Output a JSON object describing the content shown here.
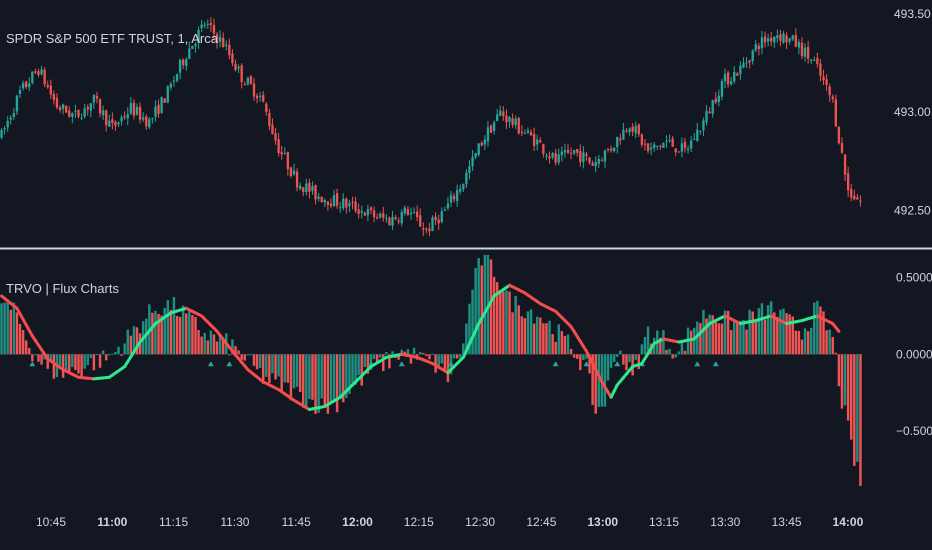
{
  "header": {
    "symbol_label": "SPDR S&P 500 ETF TRUST, 1, Arca",
    "indicator_label": "TRVO | Flux Charts"
  },
  "colors": {
    "background": "#131722",
    "up": "#26a69a",
    "down": "#ef5350",
    "histogram_up": "#1e8f80",
    "histogram_down": "#f05454",
    "signal_up": "#2ee88f",
    "signal_down": "#f54d4d",
    "divider": "#d1d4dc",
    "text": "#d1d4dc"
  },
  "chart_data": [
    {
      "type": "candlestick",
      "title": "SPDR S&P 500 ETF TRUST, 1, Arca",
      "ylim": [
        492.32,
        493.55
      ],
      "yticks": [
        {
          "value": 493.5,
          "label": "493.50"
        },
        {
          "value": 493.0,
          "label": "493.00"
        },
        {
          "value": 492.5,
          "label": "492.50"
        }
      ],
      "close_path": [
        [
          0,
          492.88
        ],
        [
          6,
          493.1
        ],
        [
          12,
          493.22
        ],
        [
          18,
          493.03
        ],
        [
          24,
          492.98
        ],
        [
          30,
          493.06
        ],
        [
          36,
          492.92
        ],
        [
          42,
          493.02
        ],
        [
          48,
          492.95
        ],
        [
          54,
          493.1
        ],
        [
          60,
          493.3
        ],
        [
          66,
          493.45
        ],
        [
          72,
          493.35
        ],
        [
          78,
          493.18
        ],
        [
          84,
          493.08
        ],
        [
          90,
          492.82
        ],
        [
          96,
          492.65
        ],
        [
          102,
          492.58
        ],
        [
          108,
          492.55
        ],
        [
          114,
          492.52
        ],
        [
          120,
          492.48
        ],
        [
          126,
          492.45
        ],
        [
          132,
          492.5
        ],
        [
          138,
          492.4
        ],
        [
          144,
          492.5
        ],
        [
          150,
          492.65
        ],
        [
          156,
          492.85
        ],
        [
          162,
          493.0
        ],
        [
          168,
          492.92
        ],
        [
          174,
          492.85
        ],
        [
          180,
          492.75
        ],
        [
          186,
          492.8
        ],
        [
          192,
          492.74
        ],
        [
          198,
          492.82
        ],
        [
          204,
          492.95
        ],
        [
          210,
          492.8
        ],
        [
          216,
          492.85
        ],
        [
          222,
          492.8
        ],
        [
          228,
          492.95
        ],
        [
          234,
          493.15
        ],
        [
          240,
          493.22
        ],
        [
          246,
          493.35
        ],
        [
          252,
          493.4
        ],
        [
          258,
          493.35
        ],
        [
          264,
          493.25
        ],
        [
          270,
          493.05
        ],
        [
          275,
          492.6
        ],
        [
          279,
          492.55
        ]
      ],
      "xticks": [
        {
          "pos": 16,
          "label": "10:45",
          "bold": false
        },
        {
          "pos": 36,
          "label": "11:00",
          "bold": true
        },
        {
          "pos": 56,
          "label": "11:15",
          "bold": false
        },
        {
          "pos": 76,
          "label": "11:30",
          "bold": false
        },
        {
          "pos": 96,
          "label": "11:45",
          "bold": false
        },
        {
          "pos": 116,
          "label": "12:00",
          "bold": true
        },
        {
          "pos": 136,
          "label": "12:15",
          "bold": false
        },
        {
          "pos": 156,
          "label": "12:30",
          "bold": false
        },
        {
          "pos": 176,
          "label": "12:45",
          "bold": false
        },
        {
          "pos": 196,
          "label": "13:00",
          "bold": true
        },
        {
          "pos": 216,
          "label": "13:15",
          "bold": false
        },
        {
          "pos": 236,
          "label": "13:30",
          "bold": false
        },
        {
          "pos": 256,
          "label": "13:45",
          "bold": false
        },
        {
          "pos": 276,
          "label": "14:00",
          "bold": true
        }
      ]
    },
    {
      "type": "bar+line",
      "title": "TRVO | Flux Charts",
      "ylim": [
        -0.95,
        0.68
      ],
      "yticks": [
        {
          "value": 0.5,
          "label": "0.5000"
        },
        {
          "value": 0.0,
          "label": "0.0000"
        },
        {
          "value": -0.5,
          "label": "−0.5000"
        }
      ],
      "histogram_path": [
        [
          0,
          0.35
        ],
        [
          5,
          0.25
        ],
        [
          10,
          0.02
        ],
        [
          15,
          -0.1
        ],
        [
          20,
          -0.12
        ],
        [
          25,
          -0.1
        ],
        [
          30,
          -0.05
        ],
        [
          35,
          -0.02
        ],
        [
          40,
          0.08
        ],
        [
          45,
          0.2
        ],
        [
          50,
          0.3
        ],
        [
          55,
          0.32
        ],
        [
          60,
          0.25
        ],
        [
          65,
          0.15
        ],
        [
          70,
          0.1
        ],
        [
          75,
          0.05
        ],
        [
          80,
          -0.05
        ],
        [
          85,
          -0.15
        ],
        [
          90,
          -0.2
        ],
        [
          95,
          -0.25
        ],
        [
          100,
          -0.3
        ],
        [
          105,
          -0.35
        ],
        [
          110,
          -0.3
        ],
        [
          115,
          -0.2
        ],
        [
          120,
          -0.1
        ],
        [
          125,
          -0.05
        ],
        [
          130,
          0.02
        ],
        [
          135,
          -0.02
        ],
        [
          140,
          -0.05
        ],
        [
          145,
          -0.15
        ],
        [
          150,
          0.05
        ],
        [
          153,
          0.45
        ],
        [
          156,
          0.62
        ],
        [
          160,
          0.55
        ],
        [
          165,
          0.35
        ],
        [
          170,
          0.3
        ],
        [
          175,
          0.25
        ],
        [
          180,
          0.15
        ],
        [
          185,
          0.05
        ],
        [
          190,
          -0.1
        ],
        [
          193,
          -0.38
        ],
        [
          196,
          -0.3
        ],
        [
          200,
          0.05
        ],
        [
          205,
          -0.15
        ],
        [
          210,
          0.15
        ],
        [
          215,
          0.1
        ],
        [
          220,
          0.0
        ],
        [
          225,
          0.2
        ],
        [
          230,
          0.28
        ],
        [
          235,
          0.22
        ],
        [
          240,
          0.2
        ],
        [
          245,
          0.25
        ],
        [
          250,
          0.3
        ],
        [
          255,
          0.22
        ],
        [
          260,
          0.15
        ],
        [
          265,
          0.3
        ],
        [
          270,
          0.1
        ],
        [
          273,
          -0.3
        ],
        [
          276,
          -0.6
        ],
        [
          279,
          -0.85
        ]
      ],
      "signal_path": [
        [
          0,
          0.38
        ],
        [
          5,
          0.3
        ],
        [
          10,
          0.12
        ],
        [
          15,
          -0.03
        ],
        [
          20,
          -0.1
        ],
        [
          25,
          -0.15
        ],
        [
          30,
          -0.16
        ],
        [
          35,
          -0.15
        ],
        [
          40,
          -0.08
        ],
        [
          45,
          0.08
        ],
        [
          50,
          0.2
        ],
        [
          55,
          0.27
        ],
        [
          60,
          0.3
        ],
        [
          65,
          0.25
        ],
        [
          70,
          0.15
        ],
        [
          75,
          0.02
        ],
        [
          80,
          -0.1
        ],
        [
          85,
          -0.18
        ],
        [
          90,
          -0.23
        ],
        [
          95,
          -0.3
        ],
        [
          100,
          -0.36
        ],
        [
          105,
          -0.34
        ],
        [
          110,
          -0.28
        ],
        [
          115,
          -0.18
        ],
        [
          120,
          -0.08
        ],
        [
          125,
          -0.02
        ],
        [
          130,
          0.0
        ],
        [
          135,
          -0.02
        ],
        [
          140,
          -0.06
        ],
        [
          145,
          -0.12
        ],
        [
          150,
          -0.02
        ],
        [
          155,
          0.2
        ],
        [
          160,
          0.38
        ],
        [
          165,
          0.45
        ],
        [
          170,
          0.4
        ],
        [
          175,
          0.33
        ],
        [
          180,
          0.28
        ],
        [
          185,
          0.18
        ],
        [
          190,
          0.02
        ],
        [
          195,
          -0.18
        ],
        [
          198,
          -0.28
        ],
        [
          200,
          -0.2
        ],
        [
          205,
          -0.08
        ],
        [
          208,
          -0.06
        ],
        [
          212,
          0.07
        ],
        [
          215,
          0.1
        ],
        [
          220,
          0.08
        ],
        [
          225,
          0.1
        ],
        [
          230,
          0.2
        ],
        [
          235,
          0.25
        ],
        [
          240,
          0.2
        ],
        [
          245,
          0.22
        ],
        [
          250,
          0.25
        ],
        [
          255,
          0.2
        ],
        [
          260,
          0.22
        ],
        [
          265,
          0.25
        ],
        [
          270,
          0.2
        ],
        [
          272,
          0.15
        ]
      ]
    }
  ]
}
